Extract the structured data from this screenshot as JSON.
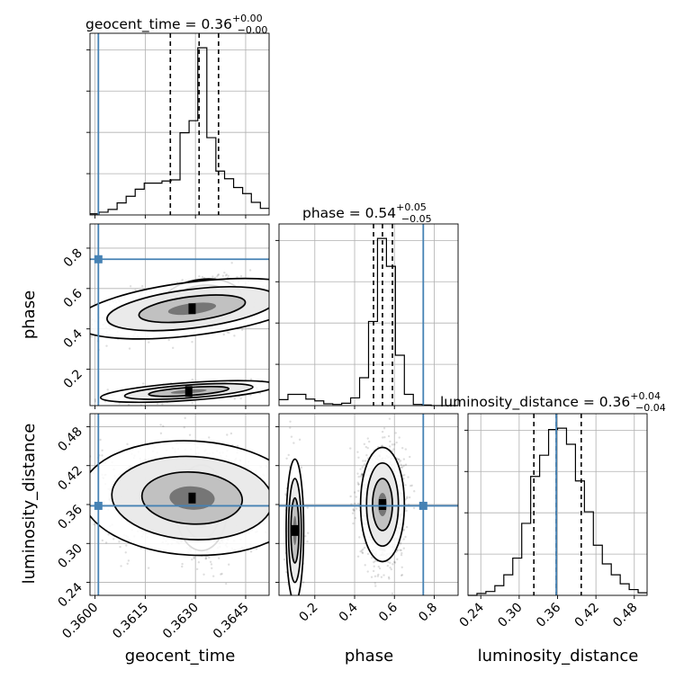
{
  "chart_data": {
    "type": "corner",
    "parameters": [
      {
        "name": "geocent_time",
        "range": [
          0.35985,
          0.3652
        ],
        "ticks": [
          "0.3600",
          "0.3615",
          "0.3630",
          "0.3645"
        ],
        "tick_values": [
          0.36,
          0.3615,
          0.363,
          0.3645
        ],
        "truth": 0.3601,
        "quantiles": [
          0.36225,
          0.36311,
          0.36369
        ],
        "title": {
          "param": "geocent_time",
          "median": "0.36",
          "plus": "+0.00",
          "minus": "−0.00"
        },
        "hist_bin_edges": [
          0.35985,
          0.36012,
          0.36039,
          0.36066,
          0.36093,
          0.3612,
          0.36147,
          0.36173,
          0.362,
          0.36227,
          0.36254,
          0.36281,
          0.36307,
          0.36334,
          0.36361,
          0.36387,
          0.36414,
          0.36441,
          0.36467,
          0.36494,
          0.3652
        ],
        "hist_counts": [
          0.2,
          0.5,
          1.0,
          2.2,
          3.4,
          4.7,
          5.8,
          5.8,
          6.2,
          6.4,
          15.0,
          17.2,
          30.5,
          14.1,
          8.0,
          6.6,
          5.0,
          3.9,
          2.3,
          1.2
        ]
      },
      {
        "name": "phase",
        "range": [
          0.02,
          0.92
        ],
        "ticks": [
          "0.2",
          "0.4",
          "0.6",
          "0.8"
        ],
        "tick_values": [
          0.2,
          0.4,
          0.6,
          0.8
        ],
        "truth": 0.745,
        "quantiles": [
          0.495,
          0.54,
          0.59
        ],
        "title": {
          "param": "phase",
          "median": "0.54",
          "plus": "+0.05",
          "minus": "−0.05"
        },
        "hist_bin_edges": [
          0.02,
          0.065,
          0.11,
          0.155,
          0.2,
          0.245,
          0.29,
          0.335,
          0.38,
          0.425,
          0.47,
          0.515,
          0.56,
          0.605,
          0.65,
          0.695,
          0.74,
          0.785,
          0.83,
          0.875,
          0.92
        ],
        "hist_counts": [
          1.0,
          1.9,
          1.9,
          1.1,
          0.8,
          0.3,
          0.2,
          0.4,
          1.3,
          4.7,
          14.2,
          28.2,
          23.5,
          8.5,
          1.9,
          0.2,
          0.1,
          0.0,
          0.0,
          0.0
        ]
      },
      {
        "name": "luminosity_distance",
        "range": [
          0.22,
          0.5
        ],
        "ticks": [
          "0.24",
          "0.30",
          "0.36",
          "0.42",
          "0.48"
        ],
        "tick_values": [
          0.24,
          0.3,
          0.36,
          0.42,
          0.48
        ],
        "truth": 0.358,
        "quantiles": [
          0.323,
          0.358,
          0.397
        ],
        "title": {
          "param": "luminosity_distance",
          "median": "0.36",
          "plus": "+0.04",
          "minus": "−0.04"
        },
        "hist_bin_edges": [
          0.22,
          0.234,
          0.248,
          0.262,
          0.276,
          0.29,
          0.304,
          0.318,
          0.332,
          0.346,
          0.36,
          0.374,
          0.388,
          0.402,
          0.416,
          0.43,
          0.444,
          0.458,
          0.472,
          0.486,
          0.5
        ],
        "hist_counts": [
          0.0,
          0.3,
          0.6,
          1.5,
          3.2,
          5.8,
          11.2,
          18.5,
          21.8,
          25.8,
          26.0,
          23.5,
          17.8,
          13.0,
          7.8,
          4.9,
          3.2,
          1.8,
          0.9,
          0.4
        ]
      }
    ],
    "truth_color": "#4682b4",
    "quantile_style": "dashed",
    "grid": true,
    "pair_panels": [
      {
        "x": "geocent_time",
        "y": "phase",
        "modes": [
          {
            "center": [
              0.36318,
              0.535
            ],
            "spread": [
              0.00055,
              0.05
            ],
            "tilt": 0.25,
            "weight": 0.55
          },
          {
            "center": [
              0.3629,
              0.5
            ],
            "spread": [
              0.0016,
              0.06
            ],
            "tilt": 0.55,
            "weight": 0.25
          },
          {
            "center": [
              0.3628,
              0.09
            ],
            "spread": [
              0.0012,
              0.02
            ],
            "tilt": 0.7,
            "weight": 0.2
          }
        ]
      },
      {
        "x": "geocent_time",
        "y": "luminosity_distance",
        "modes": [
          {
            "center": [
              0.36318,
              0.355
            ],
            "spread": [
              0.00035,
              0.03
            ],
            "tilt": 0.0,
            "weight": 0.55
          },
          {
            "center": [
              0.3629,
              0.37
            ],
            "spread": [
              0.0015,
              0.04
            ],
            "tilt": -0.1,
            "weight": 0.45
          }
        ]
      },
      {
        "x": "phase",
        "y": "luminosity_distance",
        "modes": [
          {
            "center": [
              0.54,
              0.36
            ],
            "spread": [
              0.05,
              0.04
            ],
            "tilt": 0.0,
            "weight": 0.85
          },
          {
            "center": [
              0.1,
              0.32
            ],
            "spread": [
              0.02,
              0.05
            ],
            "tilt": 0.0,
            "weight": 0.15
          }
        ]
      }
    ]
  }
}
